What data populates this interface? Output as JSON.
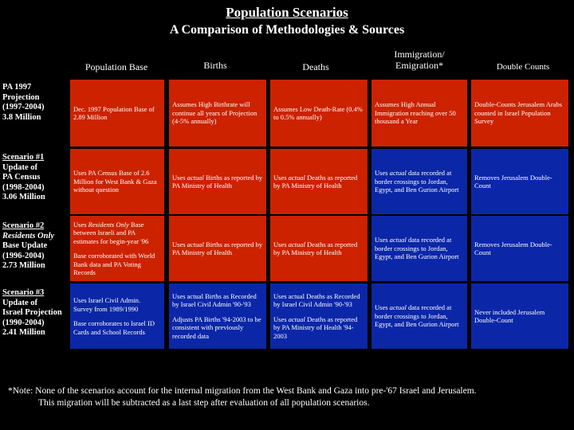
{
  "title": "Population Scenarios",
  "subtitle": "A Comparison of Methodologies & Sources",
  "columns": {
    "base": "Population Base",
    "births": "Births",
    "deaths": "Deaths",
    "migration": "Immigration/ Emigration*",
    "double": "Double Counts"
  },
  "rows": {
    "r1": {
      "label": [
        "PA 1997",
        "Projection",
        "(1997-2004)",
        "3.8 Million"
      ],
      "base": "Dec. 1997 Population Base of 2.89 Million",
      "births": "Assumes High Birthrate will continue all years of Projection (4-5% annually)",
      "deaths": "Assumes Low Death-Rate (0.4% to 0.5% annually)",
      "migration": "Assumes High Annual Immigration reaching over 50 thousand a Year",
      "double": "Double-Counts Jerusalem Arabs counted in Israel Population Survey"
    },
    "r2": {
      "label": [
        "Scenario #1",
        "Update of",
        "PA Census",
        "(1998-2004)",
        "3.06 Million"
      ],
      "base": "Uses PA Census Base of 2.6 Million for West Bank & Gaza without question",
      "births_pre": "Uses",
      "births_em": "actual",
      "births_post": "Births as reported by PA Ministry of Health",
      "deaths_pre": "Uses",
      "deaths_em": "actual",
      "deaths_post": "Deaths as reported by PA Ministry of Health",
      "migration_pre": "Uses",
      "migration_em": "actual",
      "migration_post": "data recorded at border crossings to Jordan, Egypt, and Ben Gurion Airport",
      "double": "Removes Jerusalem Double-Count"
    },
    "r3": {
      "label_0": "Scenario #2",
      "label_1": "Residents Only",
      "label_rest": [
        "Base Update",
        "(1996-2004)",
        "2.73 Million"
      ],
      "base_pre": "Uses",
      "base_em": "Residents Only",
      "base_post": "Base between Israeli and PA estimates for begin-year '96",
      "base_2": "Base corroborated with World Bank data and PA Voting Records",
      "births_pre": "Uses",
      "births_em": "actual",
      "births_post": "Births as reported by PA Ministry of Health",
      "deaths_pre": "Uses",
      "deaths_em": "actual",
      "deaths_post": "Deaths as reported by PA Ministry of Health",
      "migration_pre": "Uses",
      "migration_em": "actual",
      "migration_post": "data recorded at border crossings to Jordan, Egypt, and Ben Gurion Airport",
      "double": "Removes Jerusalem Double-Count"
    },
    "r4": {
      "label": [
        "Scenario #3",
        "Update of",
        "Israel Projection",
        "(1990-2004)",
        "2.41 Million"
      ],
      "base_1": "Uses Israel Civil Admin. Survey from 1989/1990",
      "base_2": "Base corroborates to Israel ID Cards and School Records",
      "births_1": "Uses actual Births as Recorded by Israel Civil Admin '90-'93",
      "births_2": "Adjusts PA Births '94-2003 to be consistent with previously recorded data",
      "deaths_1": "Uses actual Deaths as Recorded by Israel Civil Admin '90-'93",
      "deaths_2_pre": "Uses",
      "deaths_2_em": "actual",
      "deaths_2_post": "Deaths as reported by PA Ministry of Health '94-2003",
      "migration_pre": "Uses",
      "migration_em": "actual",
      "migration_post": "data recorded at border crossings to Jordan, Egypt, and Ben Gurion Airport",
      "double": "Never included Jerusalem Double-Count"
    }
  },
  "note_line1": "*Note: None of the scenarios account for the internal migration from the West Bank and Gaza into pre-'67 Israel and Jerusalem.",
  "note_line2": "This migration will be subtracted as a last step after evaluation of all population scenarios.",
  "colors": {
    "red": "#cc2200",
    "blue": "#0b27a8",
    "background": "#000000"
  }
}
